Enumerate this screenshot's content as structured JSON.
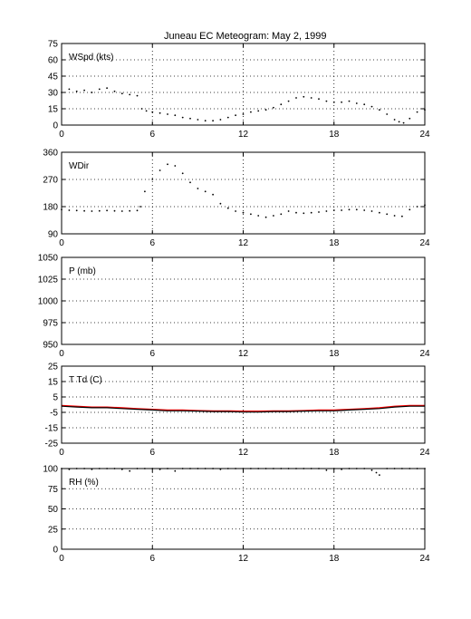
{
  "figure": {
    "title_left": "Juneau EC Meteogram:",
    "title_right": "May  2, 1999"
  },
  "colors": {
    "obs": "#000000",
    "temp": "#ff0000",
    "dewpoint": "#000000"
  },
  "chart_data": [
    {
      "type": "scatter",
      "label": "WSpd (kts)",
      "xlim": [
        0,
        24
      ],
      "ylim": [
        0,
        75
      ],
      "xticks": [
        0,
        6,
        12,
        18,
        24
      ],
      "yticks": [
        0,
        15,
        30,
        45,
        60,
        75
      ],
      "grid": true,
      "series": [
        {
          "x": [
            0,
            0.5,
            1,
            1.5,
            2,
            2.5,
            3,
            3.5,
            4,
            4.5,
            5,
            5.3,
            5.6,
            6,
            6.5,
            7,
            7.5,
            8,
            8.5,
            9,
            9.5,
            10,
            10.5,
            11,
            11.5,
            12,
            12.5,
            13,
            13.5,
            14,
            14.5,
            15,
            15.5,
            16,
            16.5,
            17,
            17.5,
            18,
            18.5,
            19,
            19.5,
            20,
            20.5,
            21,
            21.5,
            22,
            22.3,
            22.6,
            23,
            23.5,
            24
          ],
          "y": [
            30,
            33,
            31,
            32,
            30,
            33,
            34,
            31,
            29,
            28,
            27,
            15,
            13,
            12,
            11,
            10,
            9,
            7,
            6,
            5,
            4,
            4,
            5,
            7,
            9,
            10,
            12,
            13,
            14,
            16,
            19,
            22,
            25,
            26,
            25,
            24,
            22,
            21,
            21,
            22,
            20,
            19,
            17,
            14,
            10,
            5,
            3,
            2,
            6,
            12,
            14
          ]
        }
      ]
    },
    {
      "type": "scatter",
      "label": "WDir",
      "xlim": [
        0,
        24
      ],
      "ylim": [
        90,
        360
      ],
      "xticks": [
        0,
        6,
        12,
        18,
        24
      ],
      "yticks": [
        90,
        180,
        270,
        360
      ],
      "grid": true,
      "series": [
        {
          "x": [
            0,
            0.5,
            1,
            1.5,
            2,
            2.5,
            3,
            3.5,
            4,
            4.5,
            5,
            5.2,
            5.5,
            6,
            6.5,
            7,
            7.5,
            8,
            8.5,
            9,
            9.5,
            10,
            10.5,
            11,
            11.5,
            12,
            12.5,
            13,
            13.5,
            14,
            14.5,
            15,
            15.5,
            16,
            16.5,
            17,
            17.5,
            18,
            18.5,
            19,
            19.5,
            20,
            20.5,
            21,
            21.5,
            22,
            22.5,
            23,
            23.5,
            24
          ],
          "y": [
            170,
            168,
            167,
            166,
            165,
            166,
            167,
            166,
            165,
            166,
            167,
            180,
            230,
            270,
            300,
            320,
            315,
            290,
            260,
            240,
            230,
            220,
            190,
            175,
            165,
            160,
            155,
            150,
            145,
            150,
            155,
            165,
            160,
            158,
            160,
            162,
            165,
            168,
            168,
            170,
            170,
            168,
            165,
            160,
            155,
            150,
            148,
            170,
            180,
            185
          ]
        }
      ]
    },
    {
      "type": "scatter",
      "label": "P (mb)",
      "xlim": [
        0,
        24
      ],
      "ylim": [
        950,
        1050
      ],
      "xticks": [
        0,
        6,
        12,
        18,
        24
      ],
      "yticks": [
        950,
        975,
        1000,
        1025,
        1050
      ],
      "grid": true,
      "series": []
    },
    {
      "type": "line",
      "label": "T Td (C)",
      "xlim": [
        0,
        24
      ],
      "ylim": [
        -25,
        25
      ],
      "xticks": [
        0,
        6,
        12,
        18,
        24
      ],
      "yticks": [
        -25,
        -15,
        -5,
        5,
        15,
        25
      ],
      "grid": true,
      "series": [
        {
          "color_key": "temp",
          "x": [
            0,
            1,
            2,
            3,
            4,
            5,
            6,
            7,
            8,
            9,
            10,
            11,
            12,
            13,
            14,
            15,
            16,
            17,
            18,
            19,
            20,
            21,
            22,
            23,
            24
          ],
          "y": [
            -0.5,
            -1.0,
            -1.5,
            -1.5,
            -2.0,
            -2.5,
            -3.0,
            -3.5,
            -3.5,
            -3.8,
            -4.0,
            -4.0,
            -4.2,
            -4.2,
            -4.0,
            -4.0,
            -3.8,
            -3.5,
            -3.5,
            -3.0,
            -2.5,
            -2.0,
            -1.0,
            -0.5,
            -0.5
          ]
        },
        {
          "color_key": "dewpoint",
          "x": [
            0,
            1,
            2,
            3,
            4,
            5,
            6,
            7,
            8,
            9,
            10,
            11,
            12,
            13,
            14,
            15,
            16,
            17,
            18,
            19,
            20,
            21,
            22,
            23,
            24
          ],
          "y": [
            -1.0,
            -1.5,
            -2.0,
            -2.0,
            -2.5,
            -3.0,
            -3.5,
            -4.0,
            -4.0,
            -4.2,
            -4.5,
            -4.5,
            -4.8,
            -4.8,
            -4.5,
            -4.5,
            -4.2,
            -4.0,
            -4.0,
            -3.5,
            -3.0,
            -2.5,
            -1.5,
            -1.0,
            -1.0
          ]
        }
      ]
    },
    {
      "type": "scatter",
      "label": "RH (%)",
      "xlim": [
        0,
        24
      ],
      "ylim": [
        0,
        100
      ],
      "xticks": [
        0,
        6,
        12,
        18,
        24
      ],
      "yticks": [
        0,
        25,
        50,
        75,
        100
      ],
      "grid": true,
      "series": [
        {
          "x": [
            0,
            0.5,
            1,
            1.5,
            2,
            2.5,
            3,
            3.5,
            4,
            4.5,
            5,
            5.5,
            6,
            6.5,
            7,
            7.5,
            8,
            8.5,
            9,
            9.5,
            10,
            10.5,
            11,
            11.5,
            12,
            12.5,
            13,
            13.5,
            14,
            14.5,
            15,
            15.5,
            16,
            16.5,
            17,
            17.5,
            18,
            18.5,
            19,
            19.5,
            20,
            20.5,
            20.8,
            21,
            21.5,
            22,
            22.5,
            23,
            23.5,
            24
          ],
          "y": [
            100,
            99,
            100,
            100,
            99,
            100,
            100,
            100,
            99,
            97,
            100,
            100,
            100,
            99,
            100,
            97,
            100,
            100,
            100,
            100,
            100,
            99,
            100,
            100,
            100,
            100,
            100,
            100,
            100,
            100,
            100,
            100,
            100,
            100,
            100,
            98,
            100,
            99,
            100,
            100,
            100,
            98,
            95,
            92,
            100,
            100,
            100,
            100,
            100,
            100
          ]
        }
      ]
    }
  ]
}
